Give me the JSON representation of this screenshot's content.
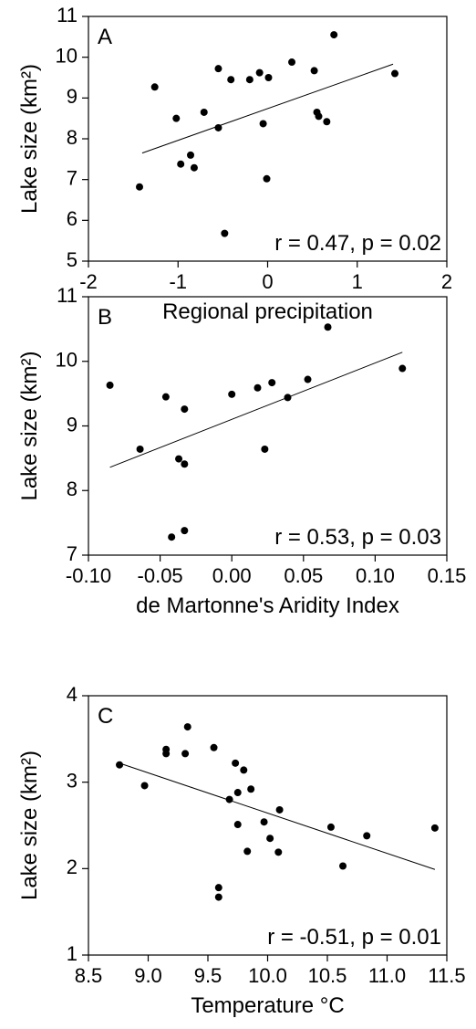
{
  "chart_data": [
    {
      "type": "scatter",
      "panel": "A",
      "annotation": "r = 0.47, p = 0.02",
      "x_label": "Regional precipitation",
      "y_label": "Lake size (km²)",
      "color": "#000000",
      "x": [
        -1.43,
        -1.26,
        -1.02,
        -0.97,
        -0.86,
        -0.82,
        -0.71,
        -0.55,
        -0.55,
        -0.48,
        -0.41,
        -0.2,
        -0.09,
        -0.05,
        -0.01,
        0.01,
        0.27,
        0.52,
        0.55,
        0.57,
        0.66,
        0.74,
        1.42
      ],
      "y": [
        6.82,
        9.27,
        8.5,
        7.38,
        7.6,
        7.29,
        8.65,
        8.27,
        9.72,
        5.68,
        9.45,
        9.45,
        9.62,
        8.37,
        7.02,
        9.5,
        9.88,
        9.67,
        8.65,
        8.55,
        8.42,
        10.55,
        9.6
      ],
      "fit": {
        "x": [
          -1.4,
          1.4
        ],
        "y": [
          7.65,
          9.83
        ]
      },
      "xlim": [
        -2,
        2
      ],
      "xticks": [
        -2,
        -1,
        0,
        1,
        2
      ],
      "ylim": [
        5,
        11
      ],
      "yticks": [
        5,
        6,
        7,
        8,
        9,
        10,
        11
      ]
    },
    {
      "type": "scatter",
      "panel": "B",
      "annotation": "r = 0.53, p = 0.03",
      "x_label": "de Martonne's Aridity Index",
      "y_label": "Lake size (km²)",
      "color": "#000000",
      "x": [
        -0.085,
        -0.064,
        -0.046,
        -0.042,
        -0.037,
        -0.033,
        -0.033,
        -0.033,
        0.0,
        0.018,
        0.023,
        0.028,
        0.039,
        0.053,
        0.067,
        0.119
      ],
      "y": [
        9.63,
        8.64,
        9.45,
        7.28,
        8.49,
        9.26,
        8.41,
        7.38,
        9.49,
        9.59,
        8.64,
        9.67,
        9.44,
        9.72,
        10.53,
        9.89
      ],
      "fit": {
        "x": [
          -0.085,
          0.119
        ],
        "y": [
          8.36,
          10.14
        ]
      },
      "xlim": [
        -0.1,
        0.15
      ],
      "xticks": [
        {
          "value": -0.1,
          "label": "-0.10"
        },
        {
          "value": -0.05,
          "label": "-0.05"
        },
        {
          "value": 0,
          "label": "0.00"
        },
        {
          "value": 0.05,
          "label": "0.05"
        },
        {
          "value": 0.1,
          "label": "0.10"
        },
        {
          "value": 0.15,
          "label": "0.15"
        }
      ],
      "ylim": [
        7,
        11
      ],
      "yticks": [
        7,
        8,
        9,
        10,
        11
      ]
    },
    {
      "type": "scatter",
      "panel": "C",
      "annotation": "r = -0.51, p = 0.01",
      "x_label": "Temperature °C",
      "y_label": "Lake size (km²)",
      "color": "#000000",
      "x": [
        8.76,
        8.97,
        9.15,
        9.15,
        9.31,
        9.33,
        9.55,
        9.59,
        9.59,
        9.68,
        9.73,
        9.75,
        9.75,
        9.8,
        9.83,
        9.86,
        9.97,
        10.02,
        10.09,
        10.1,
        10.53,
        10.63,
        10.83,
        11.4
      ],
      "y": [
        3.2,
        2.96,
        3.38,
        3.33,
        3.33,
        3.64,
        3.4,
        1.78,
        1.67,
        2.8,
        3.22,
        2.88,
        2.51,
        3.14,
        2.2,
        2.92,
        2.54,
        2.35,
        2.19,
        2.68,
        2.48,
        2.03,
        2.38,
        2.47
      ],
      "fit": {
        "x": [
          8.76,
          11.4
        ],
        "y": [
          3.22,
          1.99
        ]
      },
      "xlim": [
        8.5,
        11.5
      ],
      "xticks": [
        8.5,
        {
          "value": 9,
          "label": "9.0"
        },
        9.5,
        {
          "value": 10,
          "label": "10.0"
        },
        10.5,
        {
          "value": 11,
          "label": "11.0"
        },
        11.5
      ],
      "ylim": [
        1,
        4
      ],
      "yticks": [
        1,
        2,
        3,
        4
      ]
    }
  ]
}
